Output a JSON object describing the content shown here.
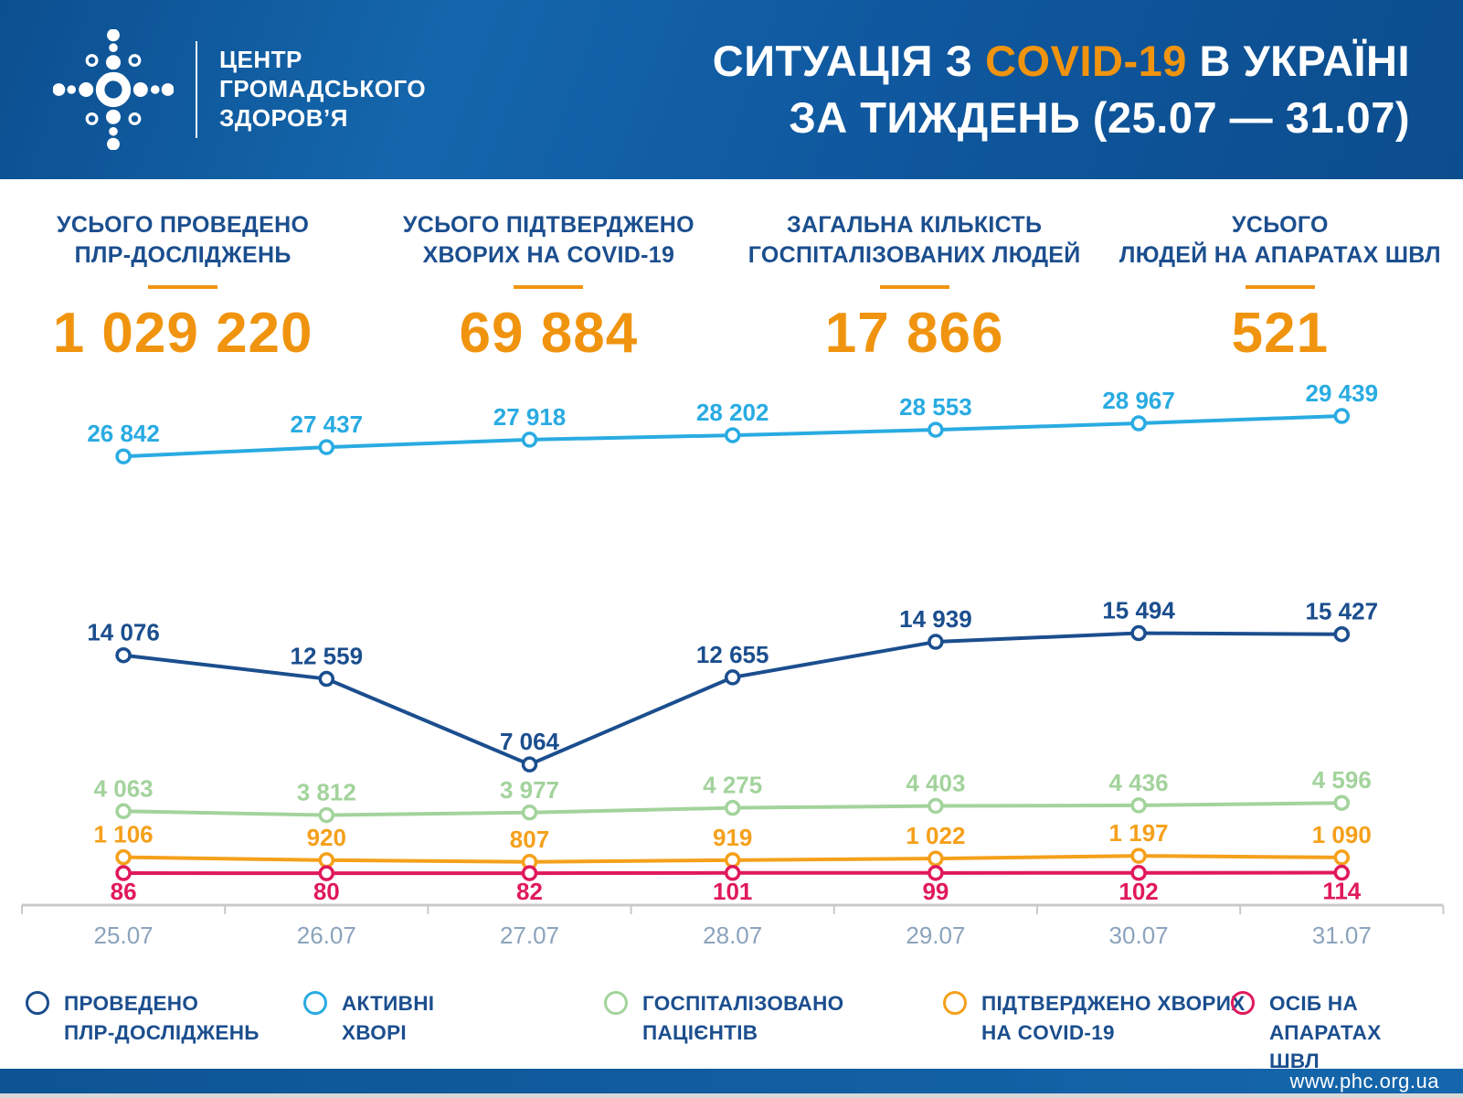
{
  "header": {
    "logo_text_lines": [
      "ЦЕНТР",
      "ГРОМАДСЬКОГО",
      "ЗДОРОВ’Я"
    ],
    "title_line1_prefix": "СИТУАЦІЯ З ",
    "title_line1_highlight": "COVID-19",
    "title_line1_suffix": " В УКРАЇНІ",
    "title_line2": "ЗА ТИЖДЕНЬ (25.07 — 31.07)"
  },
  "stats": [
    {
      "label_line1": "УСЬОГО ПРОВЕДЕНО",
      "label_line2": "ПЛР-ДОСЛІДЖЕНЬ",
      "value": "1 029 220"
    },
    {
      "label_line1": "УСЬОГО ПІДТВЕРДЖЕНО",
      "label_line2": "ХВОРИХ НА COVID-19",
      "value": "69 884"
    },
    {
      "label_line1": "ЗАГАЛЬНА КІЛЬКІСТЬ",
      "label_line2": "ГОСПІТАЛІЗОВАНИХ ЛЮДЕЙ",
      "value": "17 866"
    },
    {
      "label_line1": "УСЬОГО",
      "label_line2": "ЛЮДЕЙ НА АПАРАТАХ ШВЛ",
      "value": "521"
    }
  ],
  "chart_data": {
    "type": "line",
    "x": [
      "25.07",
      "26.07",
      "27.07",
      "28.07",
      "29.07",
      "30.07",
      "31.07"
    ],
    "series": [
      {
        "name": "ПРОВЕДЕНО ПЛР-ДОСЛІДЖЕНЬ",
        "color": "#1B4E8E",
        "values": [
          14076,
          12559,
          7064,
          12655,
          14939,
          15494,
          15427
        ],
        "labels": [
          "14 076",
          "12 559",
          "7 064",
          "12 655",
          "14 939",
          "15 494",
          "15 427"
        ],
        "label_side": "above"
      },
      {
        "name": "АКТИВНІ ХВОРІ",
        "color": "#29ABE2",
        "values": [
          26842,
          27437,
          27918,
          28202,
          28553,
          28967,
          29439
        ],
        "labels": [
          "26 842",
          "27 437",
          "27 918",
          "28 202",
          "28 553",
          "28 967",
          "29 439"
        ],
        "label_side": "above"
      },
      {
        "name": "ГОСПІТАЛІЗОВАНО ПАЦІЄНТІВ",
        "color": "#A3D39C",
        "values": [
          4063,
          3812,
          3977,
          4275,
          4403,
          4436,
          4596
        ],
        "labels": [
          "4 063",
          "3 812",
          "3 977",
          "4 275",
          "4 403",
          "4 436",
          "4 596"
        ],
        "label_side": "above"
      },
      {
        "name": "ПІДТВЕРДЖЕНО ХВОРИХ НА COVID-19",
        "color": "#F5A01B",
        "values": [
          1106,
          920,
          807,
          919,
          1022,
          1197,
          1090
        ],
        "labels": [
          "1 106",
          "920",
          "807",
          "919",
          "1 022",
          "1 197",
          "1 090"
        ],
        "label_side": "above"
      },
      {
        "name": "ОСІБ НА АПАРАТАХ ШВЛ",
        "color": "#E0195B",
        "values": [
          86,
          80,
          82,
          101,
          99,
          102,
          114
        ],
        "labels": [
          "86",
          "80",
          "82",
          "101",
          "99",
          "102",
          "114"
        ],
        "label_side": "below"
      }
    ],
    "title": "Ситуація з COVID-19 в Україні за тиждень (25.07 — 31.07)",
    "xlabel": "",
    "ylabel": "",
    "ylim_implied": [
      0,
      30000
    ],
    "grid": false,
    "legend_position": "bottom"
  },
  "legend": [
    {
      "line1": "ПРОВЕДЕНО",
      "line2": "ПЛР-ДОСЛІДЖЕНЬ",
      "color": "#1B4E8E"
    },
    {
      "line1": "АКТИВНІ",
      "line2": "ХВОРІ",
      "color": "#29ABE2"
    },
    {
      "line1": "ГОСПІТАЛІЗОВАНО",
      "line2": "ПАЦІЄНТІВ",
      "color": "#A3D39C"
    },
    {
      "line1": "ПІДТВЕРДЖЕНО ХВОРИХ",
      "line2": "НА COVID-19",
      "color": "#F5A01B"
    },
    {
      "line1": "ОСІБ НА АПАРАТАХ",
      "line2": "ШВЛ",
      "color": "#E0195B"
    }
  ],
  "footer": {
    "url": "www.phc.org.ua"
  },
  "colors": {
    "accent_orange": "#F0940F",
    "dark_blue": "#1B4E8E",
    "light_blue": "#29ABE2",
    "green": "#A3D39C",
    "orange_line": "#F5A01B",
    "red": "#E0195B",
    "axis_gray": "#C9C9C9",
    "axis_label": "#8BA3BC",
    "header_blue": "#0F579E"
  }
}
